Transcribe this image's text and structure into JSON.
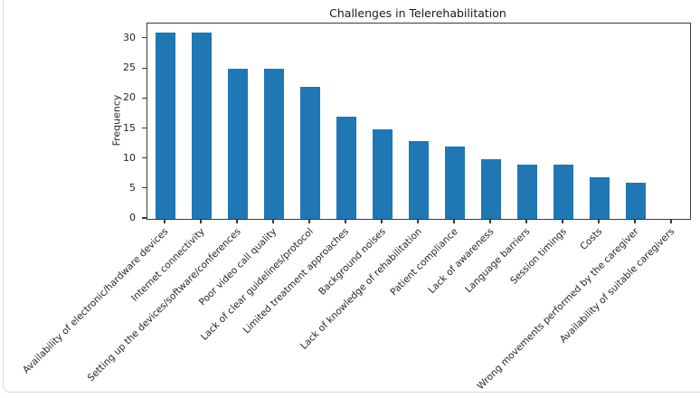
{
  "page": {
    "background_color": "#ffffff",
    "card_border_color": "#d9d9d9"
  },
  "chart_data": {
    "type": "bar",
    "title": "Challenges in Telerehabilitation",
    "xlabel": "",
    "ylabel": "Frequency",
    "categories": [
      "Availability of electronic/hardware devices",
      "Internet connectivity",
      "Setting up the devices/software/conferences",
      "Poor video call quality",
      "Lack of clear guidelines/protocol",
      "Limited treatment approaches",
      "Background noises",
      "Lack of knowledge of rehabilitation",
      "Patient compliance",
      "Lack of awareness",
      "Language barriers",
      "Session timings",
      "Costs",
      "Wrong movements performed by the caregiver",
      "Availability of suitable caregivers"
    ],
    "values": [
      31,
      31,
      25,
      25,
      22,
      17,
      15,
      13,
      12,
      10,
      9,
      9,
      7,
      6,
      0
    ],
    "yticks": [
      0,
      5,
      10,
      15,
      20,
      25,
      30
    ],
    "ylim": [
      0,
      32.55
    ],
    "bar_color": "#1f77b4",
    "axis_color": "#3a3a3a",
    "grid": false,
    "legend_position": "none",
    "x_tick_rotation_deg": 45
  }
}
